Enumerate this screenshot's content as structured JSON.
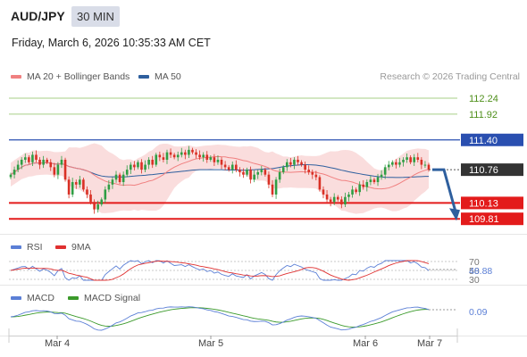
{
  "header": {
    "pair": "AUD/JPY",
    "timeframe": "30 MIN",
    "datetime": "Friday, March 6, 2026 10:35:33 AM CET"
  },
  "legend": {
    "ma20": {
      "label": "MA 20 + Bollinger Bands",
      "color": "#f08080"
    },
    "ma50": {
      "label": "MA 50",
      "color": "#2e5f9e"
    },
    "rsi": {
      "label": "RSI",
      "color": "#5b7fd6"
    },
    "rsi9ma": {
      "label": "9MA",
      "color": "#e03030"
    },
    "macd": {
      "label": "MACD",
      "color": "#5b7fd6"
    },
    "macd_signal": {
      "label": "MACD Signal",
      "color": "#3a9a2a"
    }
  },
  "credit": "Research © 2026 Trading Central",
  "colors": {
    "up": "#2f9e44",
    "down": "#d93025",
    "band_fill": "#f9d4d4",
    "resistance_green": "#a7cf87",
    "resistance_blue": "#2a4fb0",
    "support_red": "#e31b1b",
    "current_tag": "#333333",
    "arrow": "#2e5f9e"
  },
  "chart_data": [
    {
      "type": "candlestick",
      "title": "AUD/JPY 30 MIN",
      "x_tick_labels": [
        "Mar 4",
        "Mar 5",
        "Mar 6",
        "Mar 7"
      ],
      "ylim": [
        109.4,
        112.6
      ],
      "current_price": "110.76",
      "levels": [
        {
          "value": 112.24,
          "label": "112.24",
          "style": "green-line"
        },
        {
          "value": 111.92,
          "label": "111.92",
          "style": "green-line"
        },
        {
          "value": 111.4,
          "label": "111.40",
          "style": "blue-tag"
        },
        {
          "value": 110.13,
          "label": "110.13",
          "style": "red-tag"
        },
        {
          "value": 109.81,
          "label": "109.81",
          "style": "red-tag"
        }
      ],
      "close_series": [
        110.7,
        110.8,
        110.9,
        111.0,
        111.05,
        110.95,
        111.1,
        111.0,
        110.9,
        111.0,
        110.95,
        110.85,
        110.7,
        110.9,
        111.0,
        110.6,
        110.3,
        110.55,
        110.5,
        110.6,
        110.4,
        110.3,
        110.15,
        110.0,
        110.1,
        110.2,
        110.4,
        110.5,
        110.6,
        110.7,
        110.55,
        110.7,
        110.8,
        110.9,
        110.85,
        110.95,
        110.8,
        110.9,
        111.0,
        110.9,
        111.1,
        111.05,
        111.0,
        111.15,
        111.1,
        111.05,
        111.1,
        111.15,
        111.1,
        111.2,
        111.15,
        111.1,
        111.05,
        111.1,
        111.0,
        111.05,
        110.95,
        111.0,
        110.9,
        110.85,
        110.8,
        110.9,
        110.8,
        110.75,
        110.7,
        110.8,
        110.6,
        110.7,
        110.75,
        110.8,
        110.7,
        110.5,
        110.3,
        110.6,
        110.75,
        110.85,
        110.95,
        110.9,
        111.0,
        110.95,
        110.9,
        110.8,
        110.75,
        110.7,
        110.65,
        110.4,
        110.3,
        110.2,
        110.15,
        110.25,
        110.2,
        110.1,
        110.25,
        110.3,
        110.4,
        110.35,
        110.5,
        110.45,
        110.55,
        110.6,
        110.55,
        110.65,
        110.7,
        110.85,
        110.9,
        110.95,
        110.9,
        110.95,
        111.0,
        111.05,
        110.95,
        111.05,
        111.0,
        110.9,
        110.9,
        110.8
      ],
      "indicators": [
        "MA 20 + Bollinger Bands",
        "MA 50"
      ],
      "forecast": "arrow from current price down toward 109.81"
    },
    {
      "type": "line",
      "title": "RSI",
      "levels": [
        "70",
        "50",
        "30"
      ],
      "current_value": "48.88",
      "series": [
        {
          "name": "RSI"
        },
        {
          "name": "9MA"
        }
      ]
    },
    {
      "type": "line",
      "title": "MACD",
      "current_value": "0.09",
      "series": [
        {
          "name": "MACD"
        },
        {
          "name": "MACD Signal"
        }
      ]
    }
  ]
}
